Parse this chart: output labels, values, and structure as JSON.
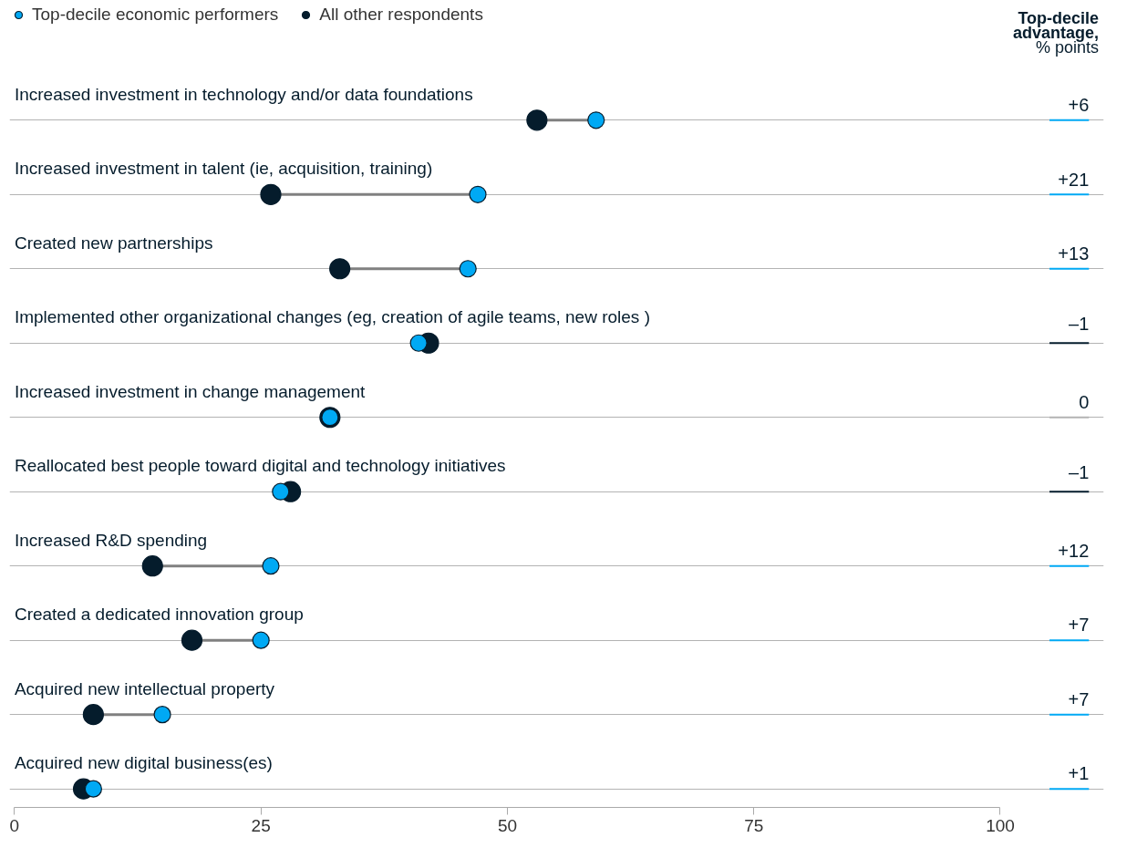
{
  "chart_data": {
    "type": "scatter",
    "orientation": "horizontal",
    "marker": "circle",
    "grid": "y",
    "legend": "top left",
    "categories": [
      "Increased investment in technology and/or data foundations",
      "Increased investment in talent (ie, acquisition, training)",
      "Created new partnerships",
      "Implemented other organizational changes (eg, creation of agile teams, new roles )",
      "Increased investment in change management",
      "Reallocated best people toward digital and technology initiatives",
      "Increased R&D spending",
      "Created a dedicated innovation group",
      "Acquired new intellectual property",
      "Acquired new digital business(es)"
    ],
    "series": [
      {
        "name": "Top-decile economic performers",
        "color": "#00a9f4",
        "values": [
          59,
          47,
          46,
          41,
          32,
          27,
          26,
          25,
          15,
          8
        ]
      },
      {
        "name": "All other respondents",
        "color": "#051c2c",
        "values": [
          53,
          26,
          33,
          42,
          32,
          28,
          14,
          18,
          8,
          7
        ]
      }
    ],
    "xlim": [
      0,
      100
    ],
    "xticks": [
      0,
      25,
      50,
      75,
      100
    ],
    "annotations": [
      "Top-decile",
      "advantage,",
      "% points",
      "+6",
      "+21",
      "+13",
      "–1",
      "0",
      "–1",
      "+12",
      "+7",
      "+7",
      "+1"
    ]
  }
}
